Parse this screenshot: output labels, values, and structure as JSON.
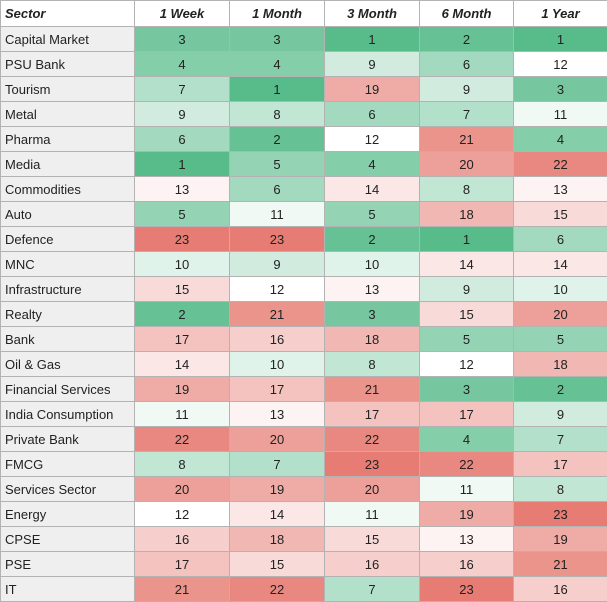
{
  "chart_data": {
    "type": "heatmap",
    "columns": [
      "Sector",
      "1 Week",
      "1 Month",
      "3 Month",
      "6 Month",
      "1 Year"
    ],
    "color_scale": {
      "low_rank_color": "#57bb8a",
      "mid_color": "#ffffff",
      "high_rank_color": "#e67c73",
      "min": 1,
      "max": 23
    },
    "rows": [
      {
        "sector": "Capital Market",
        "values": [
          3,
          3,
          1,
          2,
          1
        ]
      },
      {
        "sector": "PSU Bank",
        "values": [
          4,
          4,
          9,
          6,
          12
        ]
      },
      {
        "sector": "Tourism",
        "values": [
          7,
          1,
          19,
          9,
          3
        ]
      },
      {
        "sector": "Metal",
        "values": [
          9,
          8,
          6,
          7,
          11
        ]
      },
      {
        "sector": "Pharma",
        "values": [
          6,
          2,
          12,
          21,
          4
        ]
      },
      {
        "sector": "Media",
        "values": [
          1,
          5,
          4,
          20,
          22
        ]
      },
      {
        "sector": "Commodities",
        "values": [
          13,
          6,
          14,
          8,
          13
        ]
      },
      {
        "sector": "Auto",
        "values": [
          5,
          11,
          5,
          18,
          15
        ]
      },
      {
        "sector": "Defence",
        "values": [
          23,
          23,
          2,
          1,
          6
        ]
      },
      {
        "sector": "MNC",
        "values": [
          10,
          9,
          10,
          14,
          14
        ]
      },
      {
        "sector": "Infrastructure",
        "values": [
          15,
          12,
          13,
          9,
          10
        ]
      },
      {
        "sector": "Realty",
        "values": [
          2,
          21,
          3,
          15,
          20
        ]
      },
      {
        "sector": "Bank",
        "values": [
          17,
          16,
          18,
          5,
          5
        ]
      },
      {
        "sector": "Oil & Gas",
        "values": [
          14,
          10,
          8,
          12,
          18
        ]
      },
      {
        "sector": "Financial Services",
        "values": [
          19,
          17,
          21,
          3,
          2
        ]
      },
      {
        "sector": "India Consumption",
        "values": [
          11,
          13,
          17,
          17,
          9
        ]
      },
      {
        "sector": "Private Bank",
        "values": [
          22,
          20,
          22,
          4,
          7
        ]
      },
      {
        "sector": "FMCG",
        "values": [
          8,
          7,
          23,
          22,
          17
        ]
      },
      {
        "sector": "Services Sector",
        "values": [
          20,
          19,
          20,
          11,
          8
        ]
      },
      {
        "sector": "Energy",
        "values": [
          12,
          14,
          11,
          19,
          23
        ]
      },
      {
        "sector": "CPSE",
        "values": [
          16,
          18,
          15,
          13,
          19
        ]
      },
      {
        "sector": "PSE",
        "values": [
          17,
          15,
          16,
          16,
          21
        ]
      },
      {
        "sector": "IT",
        "values": [
          21,
          22,
          7,
          23,
          16
        ]
      }
    ]
  }
}
